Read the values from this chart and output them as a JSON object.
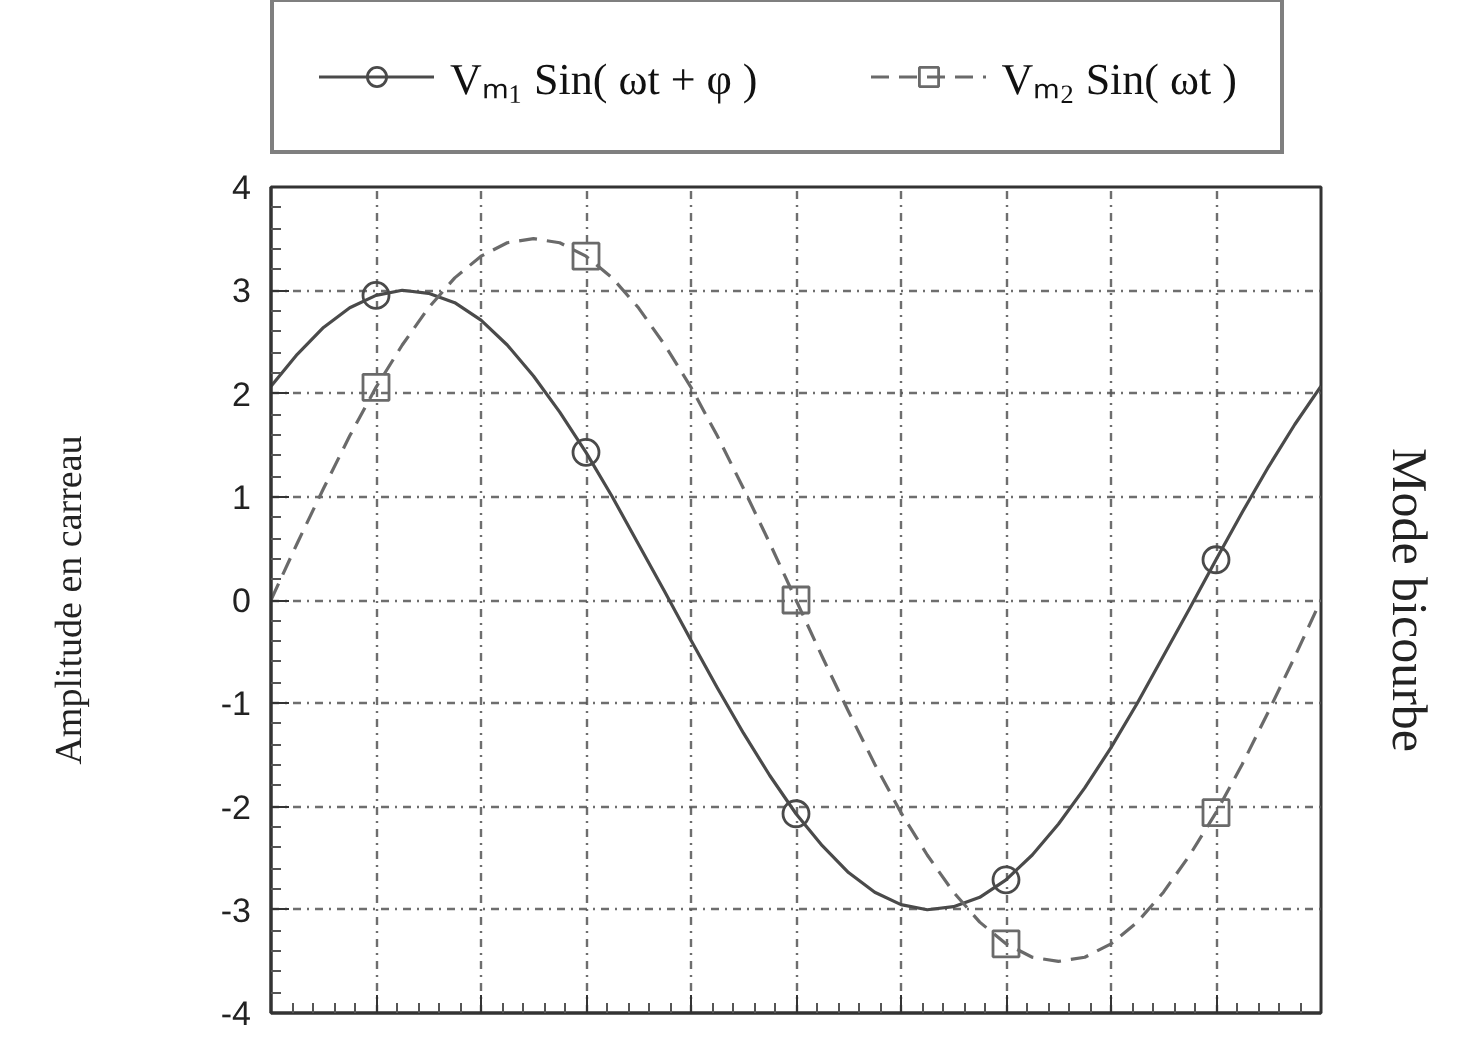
{
  "chart_data": {
    "type": "line",
    "categories": [
      null,
      null,
      null,
      null,
      null,
      null,
      null,
      null,
      null,
      null,
      null,
      null,
      null,
      null,
      null,
      null,
      null,
      null,
      null,
      null,
      null,
      null,
      null,
      null,
      null,
      null,
      null,
      null,
      null,
      null,
      null,
      null,
      null,
      null,
      null,
      null,
      null,
      null,
      null,
      null,
      null
    ],
    "series": [
      {
        "name": "Vₘ₁ Sin( ωt + φ )",
        "color": "#4a4a4a",
        "line_style": "solid",
        "values": [
          2.07,
          2.38,
          2.64,
          2.83,
          2.95,
          3.0,
          2.97,
          2.88,
          2.71,
          2.47,
          2.17,
          1.82,
          1.43,
          1.0,
          0.54,
          0.08,
          -0.39,
          -0.85,
          -1.29,
          -1.7,
          -2.07,
          -2.38,
          -2.64,
          -2.83,
          -2.95,
          -3.0,
          -2.97,
          -2.88,
          -2.71,
          -2.47,
          -2.17,
          -1.82,
          -1.43,
          -1.0,
          -0.54,
          -0.08,
          0.39,
          0.85,
          1.29,
          1.7,
          2.07
        ]
      },
      {
        "type": "scatter",
        "color": "#4a4a4a",
        "marker": "circle",
        "values": [
          null,
          null,
          null,
          null,
          2.95,
          null,
          null,
          null,
          null,
          null,
          null,
          null,
          1.43,
          null,
          null,
          null,
          null,
          null,
          null,
          null,
          -2.07,
          null,
          null,
          null,
          null,
          null,
          null,
          null,
          -2.71,
          null,
          null,
          null,
          null,
          null,
          null,
          null,
          0.39,
          null,
          null,
          null,
          null
        ]
      },
      {
        "name": "Vₘ₂ Sin( ωt )",
        "color": "#6a6a6a",
        "line_style": "dashed",
        "values": [
          0,
          0.55,
          1.08,
          1.59,
          2.06,
          2.47,
          2.83,
          3.12,
          3.33,
          3.46,
          3.5,
          3.46,
          3.33,
          3.12,
          2.83,
          2.47,
          2.06,
          1.59,
          1.08,
          0.55,
          0,
          -0.55,
          -1.08,
          -1.59,
          -2.06,
          -2.47,
          -2.83,
          -3.12,
          -3.33,
          -3.46,
          -3.5,
          -3.46,
          -3.33,
          -3.12,
          -2.83,
          -2.47,
          -2.06,
          -1.59,
          -1.08,
          -0.55,
          0
        ]
      },
      {
        "type": "scatter",
        "color": "#6a6a6a",
        "marker": "square",
        "values": [
          null,
          null,
          null,
          null,
          2.06,
          null,
          null,
          null,
          null,
          null,
          null,
          null,
          3.33,
          null,
          null,
          null,
          null,
          null,
          null,
          null,
          0,
          null,
          null,
          null,
          null,
          null,
          null,
          null,
          -3.33,
          null,
          null,
          null,
          null,
          null,
          null,
          null,
          -2.06,
          null,
          null,
          null,
          null
        ]
      }
    ],
    "ylabel": "Amplitude en carreau",
    "annotations": [
      "Mode bicourbe"
    ],
    "ylim": [
      -4,
      4
    ],
    "yticks": [
      -4,
      -3,
      -2,
      -1,
      0,
      1,
      2,
      3,
      4
    ],
    "grid": true,
    "legend": "top",
    "tick_labels": "y"
  }
}
